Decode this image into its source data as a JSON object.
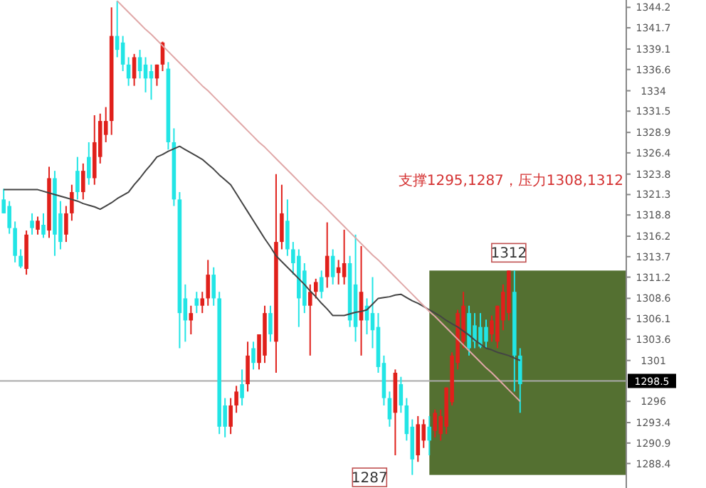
{
  "chart_data": {
    "type": "candlestick",
    "categories": [
      null,
      null,
      null,
      null,
      null,
      null,
      null,
      null,
      null,
      null,
      null,
      null,
      null,
      null,
      null,
      null,
      null,
      null,
      null,
      null,
      null,
      null,
      null,
      null,
      null,
      null,
      null,
      null,
      null,
      null,
      null,
      null,
      null,
      null,
      null,
      null,
      null,
      null,
      null,
      null,
      null,
      null,
      null,
      null,
      null,
      null,
      null,
      null,
      null,
      null,
      null,
      null,
      null,
      null,
      null,
      null,
      null,
      null,
      null,
      null,
      null,
      null,
      null,
      null,
      null,
      null,
      null,
      null,
      null,
      null,
      null,
      null,
      null,
      null,
      null,
      null,
      null,
      null,
      null,
      null,
      null,
      null,
      null,
      null,
      null,
      null,
      null,
      null,
      null,
      null,
      null,
      null
    ],
    "ohlc": [
      [
        1320.7,
        1322,
        1319,
        1319.0
      ],
      [
        1319.9,
        1320.5,
        1316.5,
        1317.2
      ],
      [
        1317.2,
        1318,
        1313,
        1313.8
      ],
      [
        1313.8,
        1314.6,
        1312.3,
        1312.5
      ],
      [
        1312.2,
        1316.9,
        1311.5,
        1316.4
      ],
      [
        1318.1,
        1319,
        1316.4,
        1317.2
      ],
      [
        1317.0,
        1318.6,
        1316.4,
        1318.1
      ],
      [
        1317.6,
        1319,
        1316,
        1316.4
      ],
      [
        1316.9,
        1324.7,
        1316,
        1323.3
      ],
      [
        1323.3,
        1324.2,
        1313.8,
        1316.4
      ],
      [
        1319.0,
        1320.5,
        1314.6,
        1315.5
      ],
      [
        1316.4,
        1319.9,
        1315.5,
        1319.0
      ],
      [
        1319.0,
        1322.5,
        1318.1,
        1321.6
      ],
      [
        1324.2,
        1325.9,
        1320.7,
        1321.6
      ],
      [
        1321.6,
        1325.1,
        1320.7,
        1324.2
      ],
      [
        1325.9,
        1327.7,
        1322.5,
        1323.3
      ],
      [
        1323.3,
        1331,
        1322.5,
        1327.7
      ],
      [
        1325.9,
        1331.2,
        1325.1,
        1330.3
      ],
      [
        1328.6,
        1332,
        1327.7,
        1330.3
      ],
      [
        1330.3,
        1344.2,
        1328.6,
        1340.7
      ],
      [
        1340.7,
        1345.0,
        1338.1,
        1339.0
      ],
      [
        1339.9,
        1340.7,
        1336.4,
        1337.2
      ],
      [
        1337.2,
        1338.1,
        1334.6,
        1335.5
      ],
      [
        1335.5,
        1338.5,
        1334.6,
        1338.1
      ],
      [
        1338.1,
        1339,
        1335.5,
        1336.4
      ],
      [
        1337.2,
        1338.1,
        1333.8,
        1335.5
      ],
      [
        1336.4,
        1337.2,
        1332.9,
        1335.5
      ],
      [
        1335.5,
        1337.2,
        1334.6,
        1337.2
      ],
      [
        1337.2,
        1340.0,
        1336.4,
        1339.9
      ],
      [
        1336.7,
        1337.5,
        1326.8,
        1327.7
      ],
      [
        1327.7,
        1329.4,
        1319.9,
        1320.7
      ],
      [
        1320.7,
        1321.6,
        1302.5,
        1306.8
      ],
      [
        1308.6,
        1310.3,
        1303.3,
        1305.9
      ],
      [
        1305.9,
        1307.7,
        1304.2,
        1306.8
      ],
      [
        1308.6,
        1309.4,
        1306.8,
        1307.7
      ],
      [
        1307.7,
        1309.4,
        1306.8,
        1308.6
      ],
      [
        1308.6,
        1313.3,
        1307.7,
        1311.5
      ],
      [
        1311.5,
        1312.4,
        1307.7,
        1308.6
      ],
      [
        1308.6,
        1309.4,
        1292.0,
        1292.9
      ],
      [
        1295.5,
        1296.4,
        1291.6,
        1292.9
      ],
      [
        1292.9,
        1296.4,
        1292.0,
        1295.5
      ],
      [
        1295.5,
        1297.9,
        1294.6,
        1297.2
      ],
      [
        1298.1,
        1299.9,
        1295.5,
        1296.4
      ],
      [
        1298.1,
        1303.3,
        1297.2,
        1301.6
      ],
      [
        1302.5,
        1303.3,
        1299.9,
        1300.7
      ],
      [
        1300.7,
        1304.2,
        1299.9,
        1304.2
      ],
      [
        1301.6,
        1307.7,
        1300.7,
        1306.8
      ],
      [
        1306.8,
        1307.7,
        1303.3,
        1304.2
      ],
      [
        1303.3,
        1323.8,
        1299.5,
        1315.5
      ],
      [
        1315.5,
        1322.5,
        1314.6,
        1319.0
      ],
      [
        1318.1,
        1320.7,
        1313.8,
        1314.6
      ],
      [
        1314.6,
        1315.5,
        1311.5,
        1312.9
      ],
      [
        1313.8,
        1314.6,
        1305.1,
        1308.6
      ],
      [
        1312.0,
        1312.9,
        1306.8,
        1307.7
      ],
      [
        1307.7,
        1310.3,
        1301.6,
        1309.4
      ],
      [
        1309.4,
        1311.0,
        1308.6,
        1310.6
      ],
      [
        1311.2,
        1312.0,
        1308.6,
        1309.4
      ],
      [
        1311.2,
        1317.9,
        1309.9,
        1313.8
      ],
      [
        1313.8,
        1314.6,
        1310.3,
        1311.2
      ],
      [
        1311.7,
        1313.3,
        1310.3,
        1312.4
      ],
      [
        1311.2,
        1317.0,
        1310.3,
        1312.9
      ],
      [
        1312.9,
        1313.8,
        1305.1,
        1305.9
      ],
      [
        1310.3,
        1316.4,
        1303.3,
        1305.1
      ],
      [
        1305.9,
        1315.0,
        1301.6,
        1309.4
      ],
      [
        1307.7,
        1308.6,
        1304.2,
        1305.9
      ],
      [
        1306.8,
        1311.2,
        1302.5,
        1304.7
      ],
      [
        1305.1,
        1306.8,
        1299.5,
        1300.2
      ],
      [
        1300.7,
        1301.6,
        1295.5,
        1296.4
      ],
      [
        1296.4,
        1297.2,
        1292.9,
        1293.8
      ],
      [
        1294.6,
        1299.9,
        1289.4,
        1299.5
      ],
      [
        1298.1,
        1299.0,
        1294.6,
        1295.5
      ],
      [
        1295.5,
        1296.4,
        1291.2,
        1292.0
      ],
      [
        1292.9,
        1293.8,
        1287.0,
        1288.9
      ],
      [
        1289.4,
        1294.2,
        1288.6,
        1293.2
      ],
      [
        1291.2,
        1293.8,
        1290.3,
        1293.2
      ],
      [
        1292.9,
        1294.2,
        1289.4,
        1291.2
      ],
      [
        1292.4,
        1295.0,
        1291.6,
        1294.6
      ],
      [
        1292.0,
        1295.0,
        1291.2,
        1294.2
      ],
      [
        1292.9,
        1297.7,
        1292.0,
        1297.7
      ],
      [
        1295.9,
        1302.0,
        1295.5,
        1301.6
      ],
      [
        1300.7,
        1307.2,
        1299.9,
        1306.8
      ],
      [
        1303.3,
        1309.4,
        1302.5,
        1307.7
      ],
      [
        1306.8,
        1307.7,
        1301.6,
        1302.5
      ],
      [
        1305.3,
        1306.8,
        1302.5,
        1303.3
      ],
      [
        1305.1,
        1306.8,
        1302.5,
        1302.7
      ],
      [
        1305.1,
        1306.0,
        1302.5,
        1303.3
      ],
      [
        1304.2,
        1306.5,
        1303.3,
        1305.9
      ],
      [
        1303.3,
        1307.7,
        1302.5,
        1307.7
      ],
      [
        1305.9,
        1310.3,
        1304.7,
        1309.4
      ],
      [
        1306.8,
        1312.0,
        1305.9,
        1312.0
      ],
      [
        1309.4,
        1312.0,
        1297.2,
        1301.6
      ],
      [
        1301.6,
        1302.5,
        1294.6,
        1298.1
      ]
    ],
    "colors": [
      "#22e5e5",
      "#22e5e5",
      "#22e5e5",
      "#22e5e5",
      "#e0201b",
      "#22e5e5",
      "#e0201b",
      "#22e5e5",
      "#e0201b",
      "#22e5e5",
      "#22e5e5",
      "#e0201b",
      "#e0201b",
      "#22e5e5",
      "#e0201b",
      "#22e5e5",
      "#e0201b",
      "#e0201b",
      "#e0201b",
      "#e0201b",
      "#22e5e5",
      "#22e5e5",
      "#22e5e5",
      "#e0201b",
      "#22e5e5",
      "#22e5e5",
      "#22e5e5",
      "#e0201b",
      "#e0201b",
      "#22e5e5",
      "#22e5e5",
      "#22e5e5",
      "#22e5e5",
      "#e0201b",
      "#22e5e5",
      "#e0201b",
      "#e0201b",
      "#22e5e5",
      "#22e5e5",
      "#22e5e5",
      "#e0201b",
      "#e0201b",
      "#22e5e5",
      "#e0201b",
      "#22e5e5",
      "#e0201b",
      "#e0201b",
      "#22e5e5",
      "#e0201b",
      "#e0201b",
      "#22e5e5",
      "#22e5e5",
      "#22e5e5",
      "#22e5e5",
      "#e0201b",
      "#e0201b",
      "#22e5e5",
      "#e0201b",
      "#22e5e5",
      "#e0201b",
      "#e0201b",
      "#22e5e5",
      "#22e5e5",
      "#e0201b",
      "#22e5e5",
      "#22e5e5",
      "#22e5e5",
      "#22e5e5",
      "#22e5e5",
      "#e0201b",
      "#22e5e5",
      "#22e5e5",
      "#22e5e5",
      "#e0201b",
      "#e0201b",
      "#22e5e5",
      "#e0201b",
      "#e0201b",
      "#e0201b",
      "#e0201b",
      "#e0201b",
      "#e0201b",
      "#22e5e5",
      "#22e5e5",
      "#22e5e5",
      "#22e5e5",
      "#e0201b",
      "#e0201b",
      "#e0201b",
      "#e0201b",
      "#22e5e5",
      "#22e5e5"
    ],
    "series": [
      {
        "type": "line",
        "color": "#444444",
        "values": [
          1321.9,
          1321.9,
          1321.9,
          1321.9,
          1321.9,
          1321.9,
          1321.9,
          1321.7,
          1321.5,
          1321.3,
          1321.1,
          1320.9,
          1320.7,
          1320.5,
          1320.2,
          1320.0,
          1319.8,
          1319.5,
          1319.9,
          1320.3,
          1320.8,
          1321.2,
          1321.6,
          1322.5,
          1323.3,
          1324.2,
          1325.0,
          1325.9,
          1326.2,
          1326.6,
          1326.9,
          1327.2,
          1326.8,
          1326.4,
          1326.0,
          1325.6,
          1325.0,
          1324.4,
          1323.7,
          1323.1,
          1322.5,
          1321.4,
          1320.3,
          1319.2,
          1318.1,
          1317.0,
          1315.9,
          1314.9,
          1313.8,
          1313.1,
          1312.4,
          1311.7,
          1311.0,
          1310.3,
          1309.5,
          1308.8,
          1308.0,
          1307.3,
          1306.5,
          1306.5,
          1306.5,
          1306.7,
          1306.9,
          1307.0,
          1307.2,
          1307.9,
          1308.6,
          1308.7,
          1308.8,
          1309.0,
          1309.1,
          1308.7,
          1308.3,
          1308.0,
          1307.6,
          1307.2,
          1306.8,
          1306.4,
          1305.9,
          1305.5,
          1305.1,
          1304.6,
          1304.1,
          1303.5,
          1303.0,
          1302.5,
          1302.3,
          1302.0,
          1301.8,
          1301.6,
          1301.3,
          1301.0
        ]
      },
      {
        "type": "line",
        "color": "#e0a8a8",
        "values": [
          null,
          null,
          null,
          null,
          null,
          null,
          null,
          null,
          null,
          null,
          null,
          null,
          null,
          null,
          null,
          null,
          null,
          null,
          null,
          null,
          1345.0,
          1344.3,
          1343.6,
          1342.9,
          1342.2,
          1341.5,
          1340.9,
          1340.2,
          1339.5,
          1338.8,
          1338.1,
          1337.4,
          1336.7,
          1336.0,
          1335.3,
          1334.6,
          1334.0,
          1333.3,
          1332.6,
          1331.9,
          1331.2,
          1330.5,
          1329.8,
          1329.1,
          1328.4,
          1327.7,
          1327.1,
          1326.4,
          1325.7,
          1325.0,
          1324.3,
          1323.6,
          1322.9,
          1322.2,
          1321.5,
          1320.8,
          1320.2,
          1319.5,
          1318.8,
          1318.1,
          1317.4,
          1316.7,
          1316.0,
          1315.3,
          1314.6,
          1313.9,
          1313.3,
          1312.6,
          1311.9,
          1311.2,
          1310.5,
          1309.8,
          1309.1,
          1308.4,
          1307.7,
          1307.0,
          1306.4,
          1305.7,
          1305.0,
          1304.3,
          1303.6,
          1302.9,
          1302.2,
          1301.5,
          1300.8,
          1300.1,
          1299.5,
          1298.8,
          1298.1,
          1297.4,
          1296.7,
          1296.0
        ]
      }
    ],
    "ylim": [
      1285.4,
      1345.1
    ],
    "yticks": [
      1344.2,
      1341.7,
      1339.1,
      1336.6,
      1334.0,
      1331.5,
      1328.9,
      1326.4,
      1323.8,
      1321.3,
      1318.8,
      1316.2,
      1313.7,
      1311.2,
      1308.6,
      1306.1,
      1303.6,
      1301.0,
      1296.0,
      1293.4,
      1290.9,
      1288.4
    ],
    "ref_lines": [
      {
        "axis": "y",
        "value": 1298.5,
        "label": "1298.5",
        "color": "#aaaaaa"
      }
    ],
    "bands": [
      {
        "axis": "y",
        "from": 1287,
        "to": 1312,
        "color": "#4e6b2a"
      }
    ],
    "annotations": [
      "支撑1295,1287，压力1308,1312",
      {
        "text": "1312",
        "y": 1312
      },
      {
        "text": "1287",
        "y": 1287
      }
    ],
    "grid": false
  }
}
